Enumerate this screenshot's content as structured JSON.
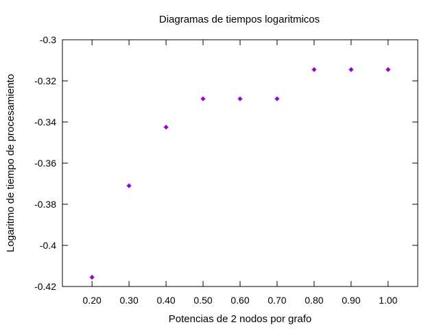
{
  "chart_data": {
    "type": "scatter",
    "title": "Diagramas de tiempos logaritmicos",
    "xlabel": "Potencias de 2 nodos por grafo",
    "ylabel": "Logaritmo de tiempo de procesamiento",
    "x_tick_labels": [
      "0.20",
      "0.30",
      "0.40",
      "0.50",
      "0.60",
      "0.70",
      "0.80",
      "0.90",
      "1.00"
    ],
    "y_tick_labels": [
      "-0.3",
      "-0.32",
      "-0.34",
      "-0.36",
      "-0.38",
      "-0.4",
      "-0.42"
    ],
    "y_tick_values": [
      -0.3,
      -0.32,
      -0.34,
      -0.36,
      -0.38,
      -0.4,
      -0.42
    ],
    "xlim": [
      0.12,
      1.08
    ],
    "ylim": [
      -0.42,
      -0.3
    ],
    "grid": false,
    "marker_color": "#9400d3",
    "series": [
      {
        "x": [
          0.2,
          0.3,
          0.4,
          0.5,
          0.6,
          0.7,
          0.8,
          0.9,
          1.0
        ],
        "y": [
          -0.4155,
          -0.371,
          -0.3425,
          -0.3287,
          -0.3287,
          -0.3287,
          -0.3145,
          -0.3145,
          -0.3145
        ]
      }
    ]
  }
}
